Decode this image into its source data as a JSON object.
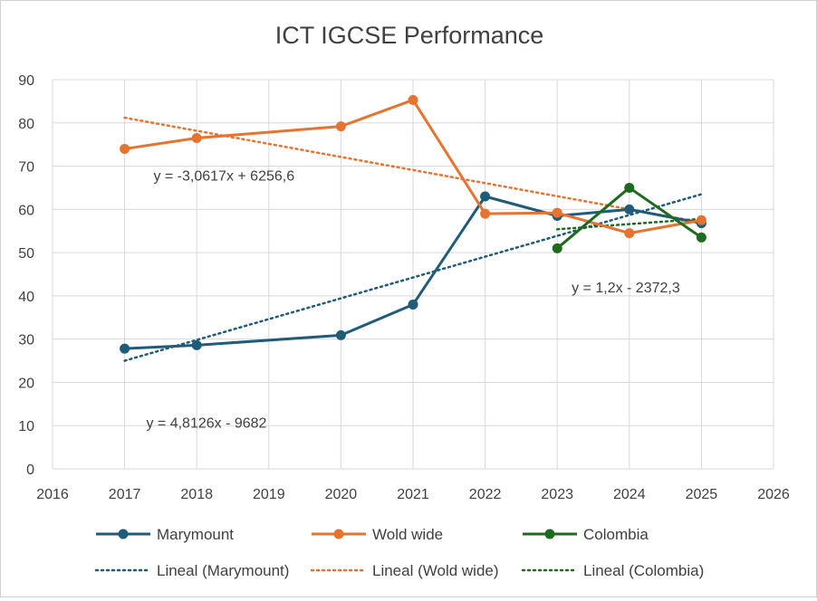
{
  "chart_data": {
    "type": "line",
    "title": "ICT IGCSE Performance",
    "xlabel": "",
    "ylabel": "",
    "xlim": [
      2016,
      2026
    ],
    "ylim": [
      0,
      90
    ],
    "x_ticks": [
      2016,
      2017,
      2018,
      2019,
      2020,
      2021,
      2022,
      2023,
      2024,
      2025,
      2026
    ],
    "y_ticks": [
      0,
      10,
      20,
      30,
      40,
      50,
      60,
      70,
      80,
      90
    ],
    "grid": true,
    "legend_position": "bottom",
    "series": [
      {
        "name": "Marymount",
        "color": "#1f5c7a",
        "points": [
          [
            2017,
            27.8
          ],
          [
            2018,
            28.6
          ],
          [
            2020,
            30.9
          ],
          [
            2021,
            38.0
          ],
          [
            2022,
            63.0
          ],
          [
            2023,
            58.5
          ],
          [
            2024,
            60.0
          ],
          [
            2025,
            56.8
          ]
        ]
      },
      {
        "name": "Wold wide",
        "color": "#e8732f",
        "points": [
          [
            2017,
            74.0
          ],
          [
            2018,
            76.5
          ],
          [
            2020,
            79.2
          ],
          [
            2021,
            85.3
          ],
          [
            2022,
            59.0
          ],
          [
            2023,
            59.2
          ],
          [
            2024,
            54.5
          ],
          [
            2025,
            57.5
          ]
        ]
      },
      {
        "name": "Colombia",
        "color": "#1d6b1f",
        "points": [
          [
            2023,
            51.0
          ],
          [
            2024,
            65.0
          ],
          [
            2025,
            53.5
          ]
        ]
      }
    ],
    "trendlines": [
      {
        "name": "Lineal (Marymount)",
        "color": "#1f5c7a",
        "x_range": [
          2017,
          2025
        ],
        "y_range": [
          25.0,
          63.5
        ]
      },
      {
        "name": "Lineal (Wold wide)",
        "color": "#e8732f",
        "x_range": [
          2017,
          2025
        ],
        "y_range": [
          81.2,
          57.0
        ]
      },
      {
        "name": "Lineal (Colombia)",
        "color": "#1d6b1f",
        "x_range": [
          2023,
          2025
        ],
        "y_range": [
          55.4,
          57.8
        ]
      }
    ],
    "annotations": [
      {
        "text": "y = -3,0617x + 6256,6",
        "x": 2017.4,
        "y": 66.7
      },
      {
        "text": "y = 1,2x - 2372,3",
        "x": 2023.2,
        "y": 40.8
      },
      {
        "text": "y = 4,8126x - 9682",
        "x": 2017.3,
        "y": 9.5
      }
    ]
  }
}
